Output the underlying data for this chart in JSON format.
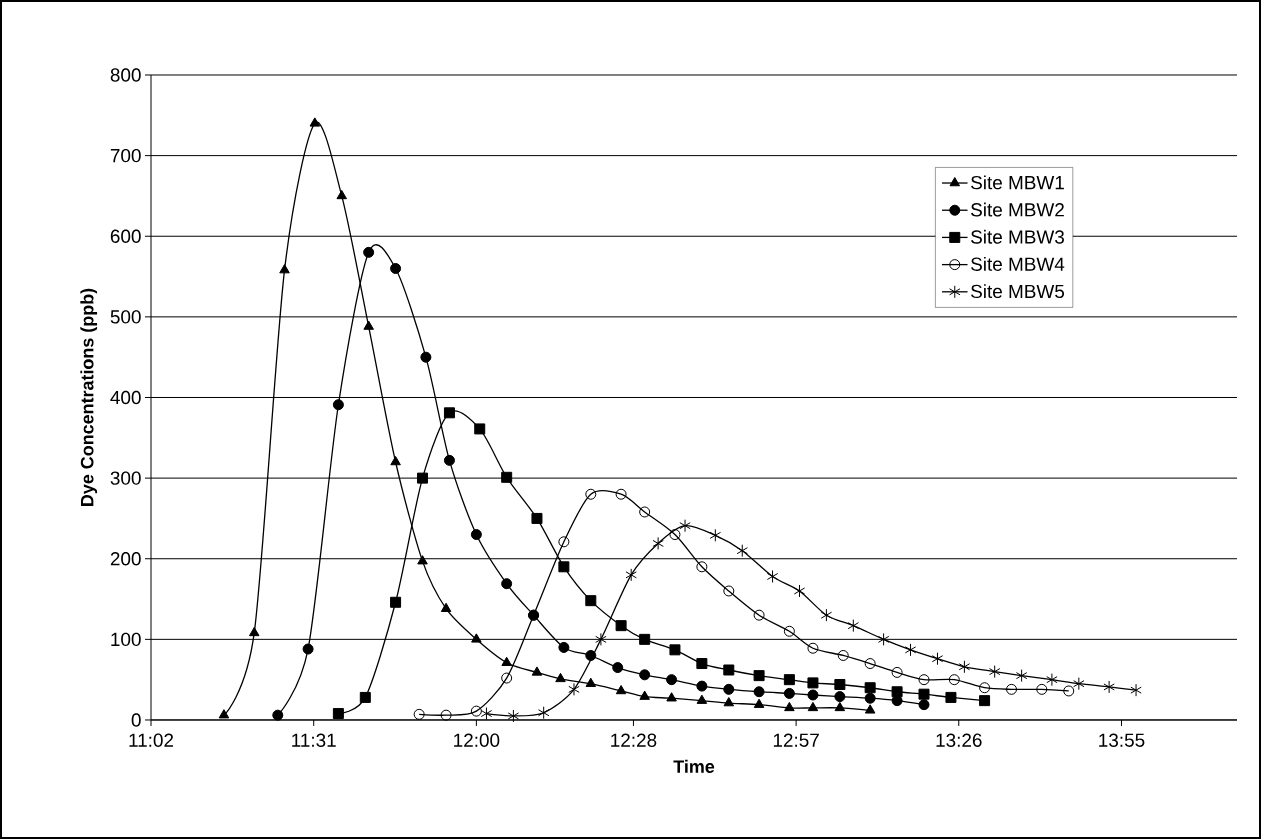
{
  "chart_data": {
    "type": "line",
    "xlabel": "Time",
    "ylabel": "Dye Concentrations (ppb)",
    "xlim": [
      11.0333,
      14.26
    ],
    "ylim": [
      0,
      800
    ],
    "xticks": [
      {
        "value": 11.0333,
        "label": "11:02"
      },
      {
        "value": 11.5167,
        "label": "11:31"
      },
      {
        "value": 12.0,
        "label": "12:00"
      },
      {
        "value": 12.4667,
        "label": "12:28"
      },
      {
        "value": 12.95,
        "label": "12:57"
      },
      {
        "value": 13.4333,
        "label": "13:26"
      },
      {
        "value": 13.9167,
        "label": "13:55"
      }
    ],
    "yticks": [
      0,
      100,
      200,
      300,
      400,
      500,
      600,
      700,
      800
    ],
    "grid": "y",
    "legend": "top right",
    "line_style": "solid",
    "series": [
      {
        "name": "Site MBW1",
        "color": "#000000",
        "marker": "triangle",
        "x": [
          11.25,
          11.34,
          11.43,
          11.52,
          11.6,
          11.68,
          11.76,
          11.84,
          11.91,
          12.0,
          12.09,
          12.18,
          12.25,
          12.34,
          12.43,
          12.5,
          12.58,
          12.67,
          12.75,
          12.84,
          12.93,
          13.0,
          13.08,
          13.17
        ],
        "values": [
          6,
          108,
          558,
          740,
          650,
          488,
          320,
          197,
          138,
          100,
          71,
          59,
          51,
          45,
          36,
          29,
          27,
          24,
          21,
          19,
          15,
          15,
          15,
          12
        ]
      },
      {
        "name": "Site MBW2",
        "color": "#000000",
        "marker": "circle",
        "x": [
          11.41,
          11.5,
          11.59,
          11.68,
          11.76,
          11.85,
          11.92,
          12.0,
          12.09,
          12.17,
          12.26,
          12.34,
          12.42,
          12.5,
          12.58,
          12.67,
          12.75,
          12.84,
          12.93,
          13.0,
          13.08,
          13.17,
          13.25,
          13.33
        ],
        "values": [
          6,
          88,
          391,
          580,
          560,
          450,
          322,
          230,
          169,
          130,
          90,
          80,
          65,
          56,
          50,
          42,
          38,
          35,
          33,
          31,
          29,
          27,
          24,
          19
        ]
      },
      {
        "name": "Site MBW3",
        "color": "#000000",
        "marker": "square",
        "x": [
          11.59,
          11.67,
          11.76,
          11.84,
          11.92,
          12.01,
          12.09,
          12.18,
          12.26,
          12.34,
          12.43,
          12.5,
          12.59,
          12.67,
          12.75,
          12.84,
          12.93,
          13.0,
          13.08,
          13.17,
          13.25,
          13.33,
          13.41,
          13.51
        ],
        "values": [
          8,
          28,
          146,
          300,
          381,
          361,
          301,
          250,
          190,
          148,
          117,
          100,
          87,
          70,
          62,
          55,
          50,
          46,
          44,
          40,
          35,
          32,
          28,
          24
        ]
      },
      {
        "name": "Site MBW4",
        "color": "#000000",
        "marker": "circle",
        "x": [
          11.83,
          11.91,
          12.0,
          12.09,
          12.17,
          12.26,
          12.34,
          12.43,
          12.5,
          12.59,
          12.67,
          12.75,
          12.84,
          12.93,
          13.0,
          13.09,
          13.17,
          13.25,
          13.33,
          13.42,
          13.51,
          13.59,
          13.68,
          13.76
        ],
        "values": [
          7,
          6,
          11,
          52,
          130,
          221,
          280,
          280,
          258,
          230,
          190,
          160,
          130,
          110,
          89,
          80,
          70,
          59,
          50,
          50,
          40,
          38,
          38,
          36
        ]
      },
      {
        "name": "Site MBW5",
        "color": "#000000",
        "marker": "cross",
        "x": [
          12.03,
          12.11,
          12.2,
          12.29,
          12.37,
          12.46,
          12.54,
          12.62,
          12.71,
          12.79,
          12.88,
          12.96,
          13.04,
          13.12,
          13.21,
          13.29,
          13.37,
          13.45,
          13.54,
          13.62,
          13.71,
          13.79,
          13.88,
          13.96
        ],
        "values": [
          8,
          5,
          9,
          38,
          100,
          180,
          219,
          241,
          229,
          210,
          178,
          160,
          130,
          117,
          100,
          87,
          76,
          66,
          60,
          55,
          50,
          45,
          41,
          37
        ]
      }
    ]
  }
}
